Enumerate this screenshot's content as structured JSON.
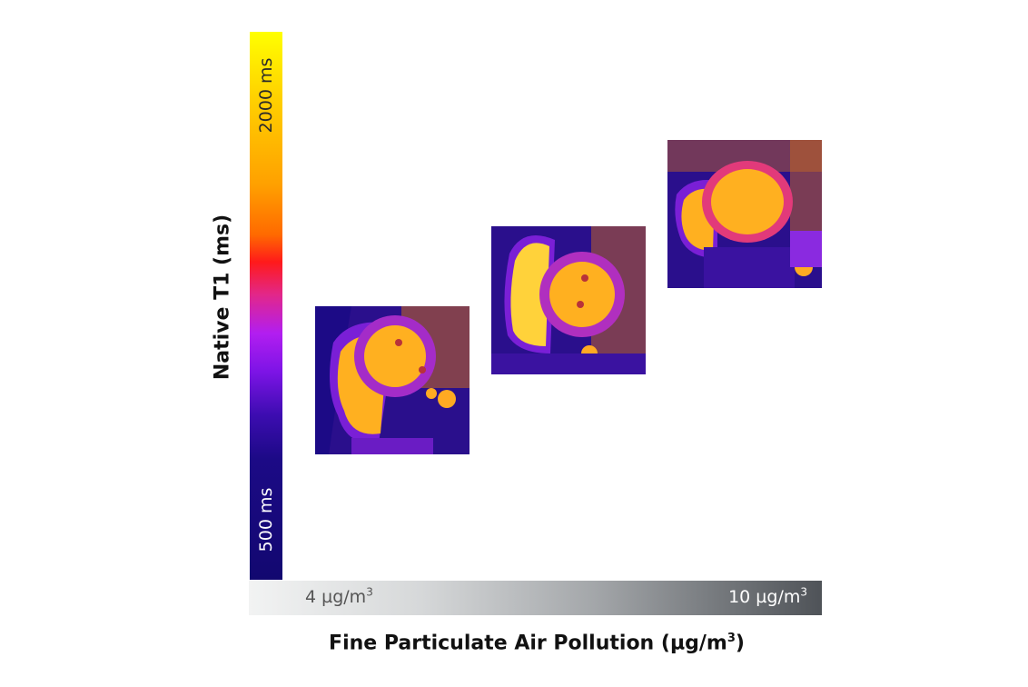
{
  "y_axis": {
    "title": "Native T1 (ms)"
  },
  "colorbar": {
    "max_label": "2000 ms",
    "min_label": "500 ms",
    "colormap": [
      "#ffff00",
      "#ffa000",
      "#ff1a1a",
      "#b21ef0",
      "#3c0cb0",
      "#120870"
    ]
  },
  "pollution_bar": {
    "low_value": "4 µg/m",
    "low_exp": "3",
    "high_value": "10 µg/m",
    "high_exp": "3",
    "gradient": [
      "#f2f3f3",
      "#4f5358"
    ]
  },
  "x_axis": {
    "title_prefix": "Fine Particulate Air Pollution (µg/m",
    "title_exp": "3",
    "title_suffix": ")"
  },
  "images": [
    {
      "name": "cardiac-mri-low-pollution",
      "description": "short-axis cardiac T1 map"
    },
    {
      "name": "cardiac-mri-mid-pollution",
      "description": "short-axis cardiac T1 map"
    },
    {
      "name": "cardiac-mri-high-pollution",
      "description": "short-axis cardiac T1 map"
    }
  ]
}
